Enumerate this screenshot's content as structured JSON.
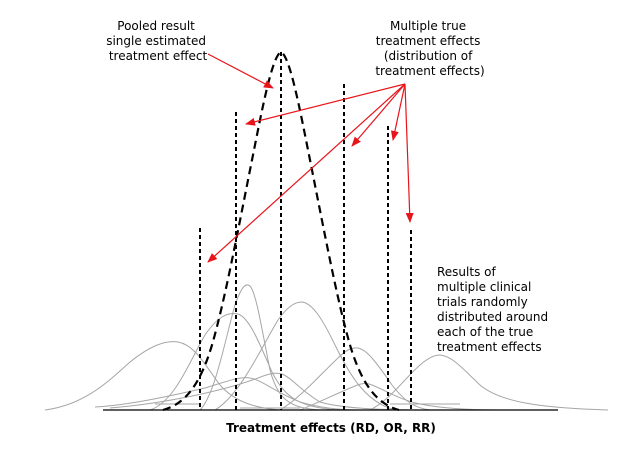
{
  "diagram": {
    "pooled_label": [
      "Pooled result",
      "single estimated",
      "treatment effect"
    ],
    "multiple_label": [
      "Multiple true",
      "treatment effects",
      "(distribution of",
      "treatment effects)"
    ],
    "results_label": [
      "Results of",
      "multiple clinical",
      "trials randomly",
      "distributed around",
      "each of the true",
      "treatment effects"
    ],
    "axis_title": "Treatment effects (RD, OR, RR)",
    "colors": {
      "arrow": "#e8141b",
      "pooled_curve": "#000000",
      "trial_curves": "#a6a6a6",
      "true_effect_lines": "#000000"
    }
  }
}
